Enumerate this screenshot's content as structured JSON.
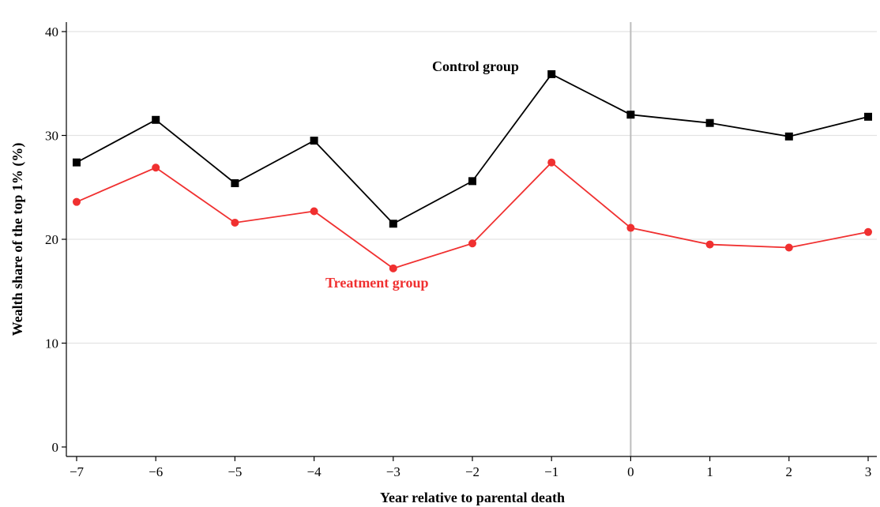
{
  "chart_data": {
    "type": "line",
    "title": "",
    "xlabel": "Year relative to parental death",
    "ylabel": "Wealth share of the top 1% (%)",
    "x": [
      -7,
      -6,
      -5,
      -4,
      -3,
      -2,
      -1,
      0,
      1,
      2,
      3
    ],
    "x_tick_labels": [
      "−7",
      "−6",
      "−5",
      "−4",
      "−3",
      "−2",
      "−1",
      "0",
      "1",
      "2",
      "3"
    ],
    "y_ticks": [
      0,
      10,
      20,
      30,
      40
    ],
    "y_tick_labels": [
      "0",
      "10",
      "20",
      "30",
      "40"
    ],
    "xlim": [
      -7,
      3
    ],
    "ylim": [
      0,
      40
    ],
    "grid": "horizontal",
    "reference_line_x": 0,
    "legend": "none",
    "series": [
      {
        "name": "Control group",
        "color": "#000000",
        "marker": "square",
        "values": [
          27.4,
          31.5,
          25.4,
          29.5,
          21.5,
          25.6,
          35.9,
          32.0,
          31.2,
          29.9,
          31.8
        ]
      },
      {
        "name": "Treatment group",
        "color": "#f03030",
        "marker": "circle",
        "values": [
          23.6,
          26.9,
          21.6,
          22.7,
          17.2,
          19.6,
          27.4,
          21.1,
          19.5,
          19.2,
          20.7
        ]
      }
    ]
  }
}
